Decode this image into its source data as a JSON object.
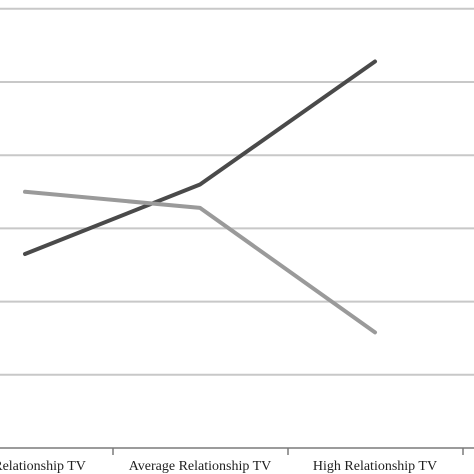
{
  "chart_data": {
    "type": "line",
    "categories": [
      "Low Relationship TV",
      "Average Relationship TV",
      "High Relationship TV"
    ],
    "series": [
      {
        "values": [
          2.65,
          3.6,
          5.28
        ],
        "color": "#4a4a4a"
      },
      {
        "values": [
          3.5,
          3.28,
          1.58
        ],
        "color": "#9a9a9a"
      }
    ],
    "ylim": [
      0,
      6
    ],
    "grid": true,
    "legend": "none",
    "title": "",
    "xlabel": "",
    "ylabel": ""
  }
}
